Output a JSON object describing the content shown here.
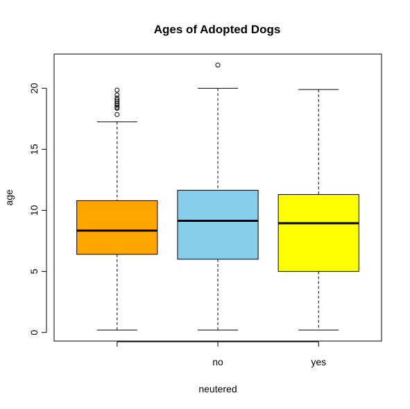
{
  "chart_data": {
    "type": "boxplot",
    "title": "Ages of Adopted Dogs",
    "xlabel": "neutered",
    "ylabel": "age",
    "ylim": [
      -0.7,
      22.8
    ],
    "yticks": [
      0,
      5,
      10,
      15,
      20
    ],
    "grid": false,
    "legend": "none",
    "categories": [
      "",
      "no",
      "yes"
    ],
    "boxes": [
      {
        "category": "",
        "color": "#FFA500",
        "whisker_low": 0.2,
        "q1": 6.4,
        "median": 8.35,
        "q3": 10.8,
        "whisker_high": 17.25,
        "outliers": [
          17.85,
          18.35,
          18.45,
          18.6,
          18.75,
          18.9,
          19.05,
          19.2,
          19.45,
          19.85
        ]
      },
      {
        "category": "no",
        "color": "#87CEEB",
        "whisker_low": 0.2,
        "q1": 6.0,
        "median": 9.15,
        "q3": 11.65,
        "whisker_high": 20.0,
        "outliers": [
          21.9
        ]
      },
      {
        "category": "yes",
        "color": "#FFFF00",
        "whisker_low": 0.2,
        "q1": 5.0,
        "median": 8.95,
        "q3": 11.3,
        "whisker_high": 19.9,
        "outliers": []
      }
    ]
  }
}
